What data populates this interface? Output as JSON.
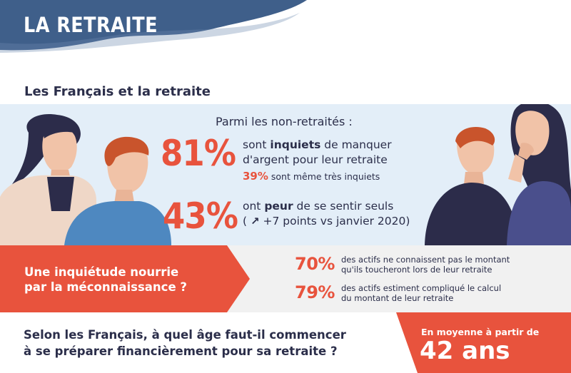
{
  "header": {
    "title": "LA RETRAITE"
  },
  "section": {
    "title": "Les Français et la retraite"
  },
  "stats": {
    "intro": "Parmi les non-retraités :",
    "items": [
      {
        "percent": "81%",
        "text_before": "sont ",
        "text_bold": "inquiets",
        "text_after": " de manquer d'argent pour leur retraite",
        "sub_percent": "39%",
        "sub_text": " sont même très inquiets"
      },
      {
        "percent": "43%",
        "text_before": "ont ",
        "text_bold": "peur",
        "text_after": " de se sentir seuls",
        "note_open": "( ",
        "note_icon": "↗",
        "note_text": " +7 points vs janvier 2020)"
      }
    ]
  },
  "middle": {
    "heading_line1": "Une inquiétude nourrie",
    "heading_line2": "par la méconnaissance ?",
    "facts": [
      {
        "percent": "70%",
        "line1": "des actifs ne connaissent pas le montant",
        "line2": "qu'ils toucheront lors de leur retraite"
      },
      {
        "percent": "79%",
        "line1": "des actifs estiment compliqué le calcul",
        "line2": "du montant de leur retraite"
      }
    ]
  },
  "bottom": {
    "question_line1": "Selon les Français, à quel âge faut-il commencer",
    "question_line2": "à se préparer financièrement pour sa retraite ?",
    "answer_small": "En moyenne à partir de",
    "answer_big": "42 ans"
  },
  "colors": {
    "navy": "#3f5f8a",
    "accent": "#e8533d",
    "panel": "#e3eef8",
    "text": "#2b2e4a"
  }
}
